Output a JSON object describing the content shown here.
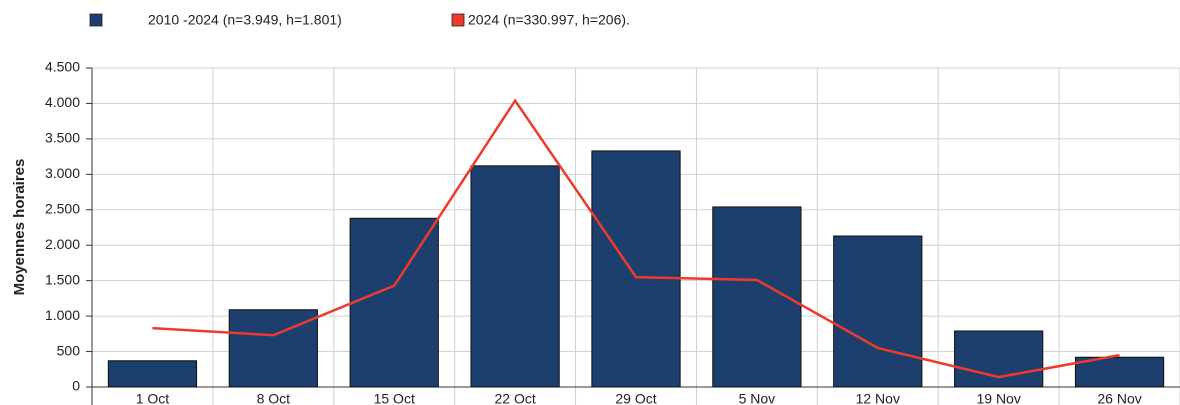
{
  "chart_data": {
    "type": "bar",
    "y_label": "Moyennes horaires",
    "categories": [
      "1 Oct",
      "8 Oct",
      "15 Oct",
      "22 Oct",
      "29 Oct",
      "5 Nov",
      "12 Nov",
      "19 Nov",
      "26 Nov"
    ],
    "series": [
      {
        "name": "2010 -2024 (n=3.949, h=1.801)",
        "color": "#1c3f6e",
        "type": "bar",
        "values": [
          370,
          1090,
          2380,
          3120,
          3330,
          2540,
          2130,
          790,
          420
        ]
      },
      {
        "name": "2024 (n=330.997, h=206).",
        "color": "#ee3a2c",
        "type": "line",
        "values": [
          830,
          730,
          1430,
          4040,
          1550,
          1510,
          550,
          140,
          450
        ]
      }
    ],
    "ylim": [
      0,
      4500
    ],
    "yticks": [
      0,
      500,
      {
        "value": 1000,
        "label": "1.000"
      },
      {
        "value": 1500,
        "label": "1.500"
      },
      {
        "value": 2000,
        "label": "2.000"
      },
      {
        "value": 2500,
        "label": "2.500"
      },
      {
        "value": 3000,
        "label": "3.000"
      },
      {
        "value": 3500,
        "label": "3.500"
      },
      {
        "value": 4000,
        "label": "4.000"
      },
      {
        "value": 4500,
        "label": "4.500"
      }
    ],
    "grid": true
  }
}
